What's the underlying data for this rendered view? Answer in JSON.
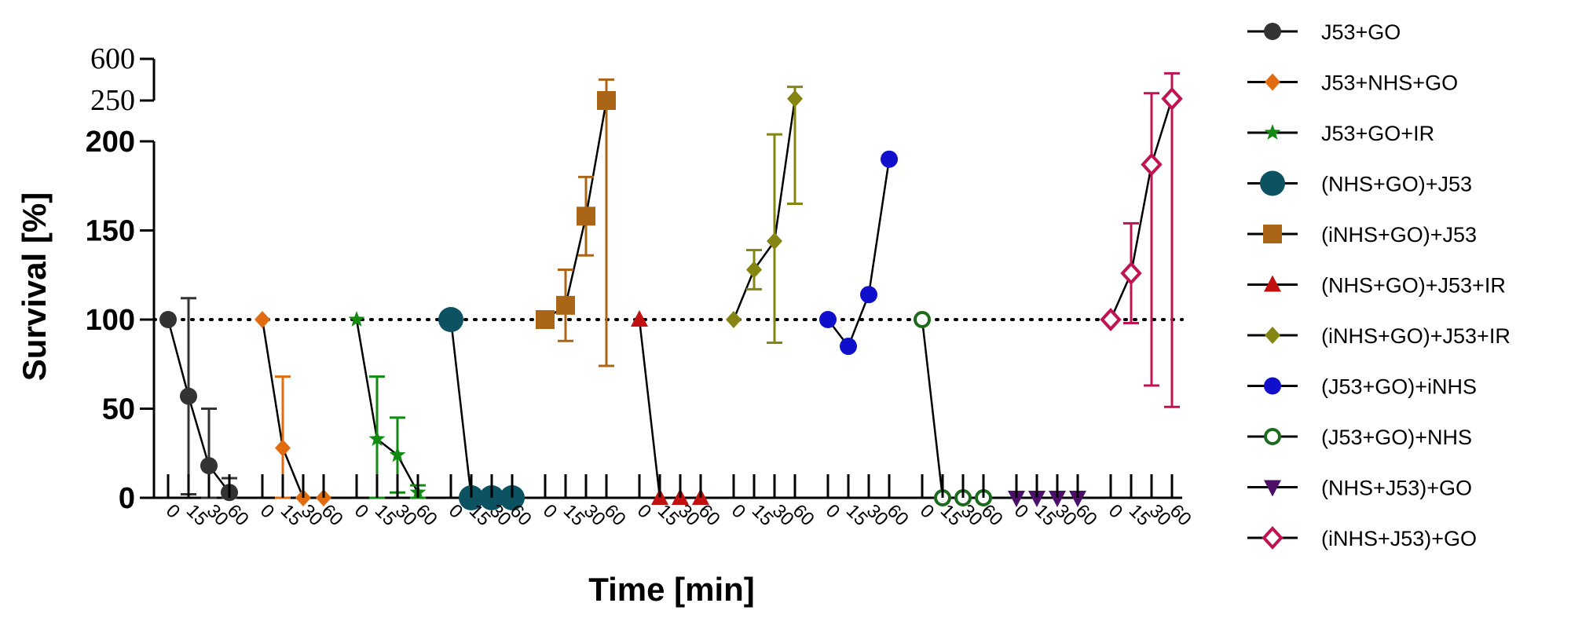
{
  "chart_data": {
    "type": "line",
    "title": "",
    "xlabel": "Time [min]",
    "ylabel": "Survival [%]",
    "ylim": [
      0,
      200
    ],
    "ylim_break": [
      250,
      600
    ],
    "yticks": [
      "0",
      "50",
      "100",
      "150",
      "200"
    ],
    "yticks_break": [
      "250",
      "600"
    ],
    "reference_line": 100,
    "x": [
      "0",
      "15",
      "30",
      "60"
    ],
    "series": [
      {
        "name": "J53+GO",
        "marker": "circle",
        "color": "#333333",
        "fill": true,
        "values": [
          100,
          57,
          18,
          3
        ],
        "err": [
          0,
          55,
          32,
          8
        ]
      },
      {
        "name": "J53+NHS+GO",
        "marker": "diamond",
        "color": "#e06b10",
        "fill": true,
        "values": [
          100,
          28,
          0,
          0
        ],
        "err": [
          0,
          40,
          0,
          0
        ]
      },
      {
        "name": "J53+GO+IR",
        "marker": "star",
        "color": "#128a12",
        "fill": true,
        "values": [
          100,
          33,
          24,
          3
        ],
        "err": [
          0,
          35,
          21,
          4
        ]
      },
      {
        "name": "(NHS+GO)+J53",
        "marker": "big-circle",
        "color": "#0d5262",
        "fill": true,
        "values": [
          100,
          0,
          0,
          0
        ],
        "err": [
          0,
          0,
          0,
          0
        ]
      },
      {
        "name": "(iNHS+GO)+J53",
        "marker": "square",
        "color": "#ab6516",
        "fill": true,
        "values": [
          100,
          108,
          158,
          250
        ],
        "err": [
          0,
          20,
          22,
          176
        ]
      },
      {
        "name": "(NHS+GO)+J53+IR",
        "marker": "triangle-up",
        "color": "#c01010",
        "fill": true,
        "values": [
          100,
          0,
          0,
          0
        ],
        "err": [
          0,
          0,
          0,
          0
        ]
      },
      {
        "name": "(iNHS+GO)+J53+IR",
        "marker": "diamond",
        "color": "#858513",
        "fill": true,
        "values": [
          100,
          128,
          144,
          265
        ],
        "err": [
          0,
          11,
          57,
          100
        ]
      },
      {
        "name": "(J53+GO)+iNHS",
        "marker": "circle",
        "color": "#1010cc",
        "fill": true,
        "values": [
          100,
          85,
          114,
          190
        ],
        "err": [
          0,
          0,
          0,
          0
        ]
      },
      {
        "name": "(J53+GO)+NHS",
        "marker": "circle-open",
        "color": "#1c6a1c",
        "fill": false,
        "values": [
          100,
          0,
          0,
          0
        ],
        "err": [
          0,
          0,
          0,
          0
        ]
      },
      {
        "name": "(NHS+J53)+GO",
        "marker": "triangle-down",
        "color": "#4c1068",
        "fill": true,
        "values": [
          0,
          0,
          0,
          0
        ],
        "err": [
          0,
          0,
          0,
          0
        ]
      },
      {
        "name": "(iNHS+J53)+GO",
        "marker": "diamond-open",
        "color": "#c01452",
        "fill": false,
        "values": [
          100,
          126,
          187,
          265
        ],
        "err": [
          0,
          28,
          124,
          214
        ]
      }
    ]
  }
}
